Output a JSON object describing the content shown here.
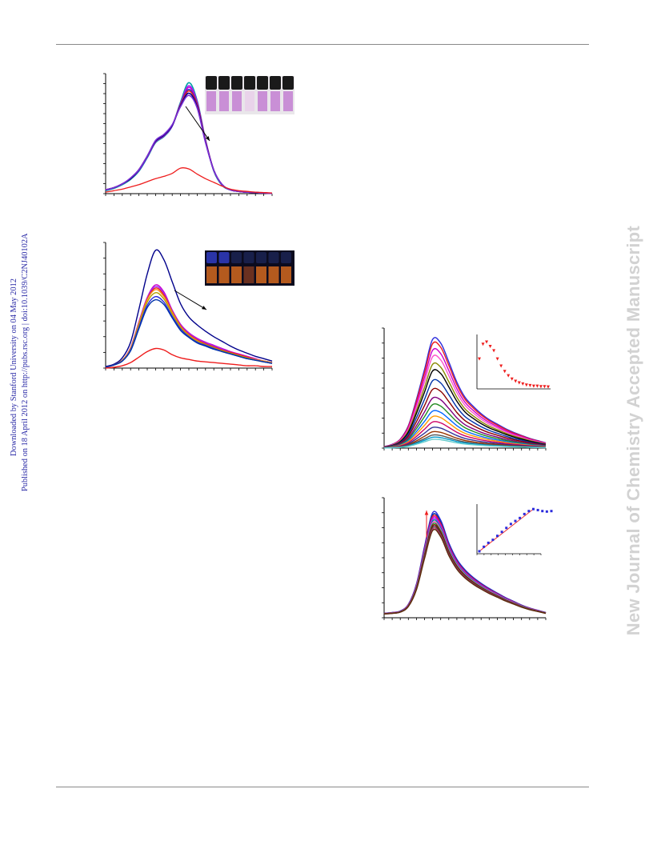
{
  "side_meta": {
    "line1": "Downloaded by Stanford University on 04 May 2012",
    "line2": "Published on 18 April 2012 on http://pubs.rsc.org | doi:10.1039/C2NJ40102A"
  },
  "watermark": "New Journal of Chemistry Accepted Manuscript",
  "colors": {
    "rule": "#8a8a8a",
    "side_meta": "#2a2aa6",
    "watermark": "#d2d2d2",
    "red": "#ee1c1c",
    "blue": "#2c2cdd",
    "navy": "#00008b"
  },
  "chart_data": [
    {
      "panel": "absorption",
      "type": "line",
      "x": [
        0,
        1,
        2,
        3,
        4,
        5,
        6,
        7,
        8,
        9,
        10,
        11,
        12,
        13,
        14,
        15,
        16,
        17,
        18,
        19,
        20
      ],
      "ylim": [
        0,
        1.6
      ],
      "series": [
        {
          "color": "#00a3a3",
          "values": [
            0.04,
            0.07,
            0.12,
            0.19,
            0.3,
            0.48,
            0.68,
            0.76,
            0.9,
            1.22,
            1.48,
            1.24,
            0.72,
            0.3,
            0.11,
            0.05,
            0.03,
            0.02,
            0.015,
            0.01,
            0.005
          ]
        },
        {
          "color": "#9b30ff",
          "values": [
            0.05,
            0.08,
            0.13,
            0.2,
            0.31,
            0.49,
            0.69,
            0.77,
            0.9,
            1.2,
            1.44,
            1.22,
            0.71,
            0.31,
            0.12,
            0.05,
            0.03,
            0.02,
            0.015,
            0.01,
            0.005
          ]
        },
        {
          "color": "#cc00cc",
          "values": [
            0.05,
            0.08,
            0.13,
            0.2,
            0.31,
            0.49,
            0.69,
            0.77,
            0.91,
            1.2,
            1.42,
            1.21,
            0.71,
            0.31,
            0.12,
            0.05,
            0.03,
            0.02,
            0.015,
            0.01,
            0.005
          ]
        },
        {
          "color": "#3333cc",
          "values": [
            0.05,
            0.08,
            0.13,
            0.2,
            0.31,
            0.49,
            0.7,
            0.78,
            0.91,
            1.19,
            1.39,
            1.19,
            0.7,
            0.31,
            0.12,
            0.05,
            0.03,
            0.02,
            0.015,
            0.01,
            0.005
          ]
        },
        {
          "color": "#ee1c1c",
          "values": [
            0.05,
            0.08,
            0.13,
            0.2,
            0.32,
            0.5,
            0.7,
            0.78,
            0.91,
            1.18,
            1.37,
            1.18,
            0.7,
            0.31,
            0.12,
            0.05,
            0.03,
            0.02,
            0.015,
            0.01,
            0.005
          ]
        },
        {
          "color": "#00008b",
          "values": [
            0.05,
            0.08,
            0.13,
            0.2,
            0.32,
            0.5,
            0.7,
            0.78,
            0.91,
            1.17,
            1.34,
            1.16,
            0.69,
            0.31,
            0.12,
            0.05,
            0.03,
            0.02,
            0.015,
            0.01,
            0.005
          ]
        },
        {
          "color": "#7a2fd6",
          "values": [
            0.05,
            0.08,
            0.13,
            0.21,
            0.32,
            0.5,
            0.71,
            0.79,
            0.92,
            1.16,
            1.31,
            1.14,
            0.68,
            0.31,
            0.12,
            0.05,
            0.03,
            0.02,
            0.015,
            0.01,
            0.005
          ]
        },
        {
          "color": "#ee1c1c",
          "values": [
            0.02,
            0.04,
            0.06,
            0.09,
            0.12,
            0.16,
            0.2,
            0.23,
            0.27,
            0.34,
            0.33,
            0.26,
            0.2,
            0.15,
            0.1,
            0.06,
            0.04,
            0.03,
            0.02,
            0.015,
            0.01
          ]
        }
      ]
    },
    {
      "panel": "emission",
      "type": "line",
      "x": [
        0,
        1,
        2,
        3,
        4,
        5,
        6,
        7,
        8,
        9,
        10,
        11,
        12,
        13,
        14,
        15,
        16,
        17,
        18,
        19,
        20
      ],
      "ylim": [
        0,
        1.6
      ],
      "series": [
        {
          "color": "#00008b",
          "values": [
            0.02,
            0.05,
            0.13,
            0.33,
            0.75,
            1.2,
            1.5,
            1.38,
            1.1,
            0.82,
            0.65,
            0.55,
            0.47,
            0.4,
            0.34,
            0.28,
            0.23,
            0.19,
            0.15,
            0.12,
            0.09
          ]
        },
        {
          "color": "#cc00cc",
          "values": [
            0.01,
            0.04,
            0.1,
            0.26,
            0.59,
            0.9,
            1.06,
            0.97,
            0.74,
            0.56,
            0.45,
            0.38,
            0.33,
            0.29,
            0.25,
            0.21,
            0.18,
            0.15,
            0.12,
            0.09,
            0.07
          ]
        },
        {
          "color": "#9b30ff",
          "values": [
            0.01,
            0.04,
            0.1,
            0.25,
            0.58,
            0.89,
            1.04,
            0.95,
            0.73,
            0.55,
            0.44,
            0.37,
            0.32,
            0.28,
            0.24,
            0.2,
            0.17,
            0.14,
            0.11,
            0.09,
            0.07
          ]
        },
        {
          "color": "#ee1c1c",
          "values": [
            0.01,
            0.04,
            0.1,
            0.25,
            0.57,
            0.88,
            1.02,
            0.93,
            0.72,
            0.54,
            0.43,
            0.36,
            0.31,
            0.27,
            0.23,
            0.2,
            0.17,
            0.14,
            0.11,
            0.09,
            0.07
          ]
        },
        {
          "color": "#f7931e",
          "values": [
            0.01,
            0.04,
            0.1,
            0.25,
            0.57,
            0.87,
            1.0,
            0.91,
            0.71,
            0.53,
            0.42,
            0.35,
            0.3,
            0.26,
            0.22,
            0.19,
            0.16,
            0.13,
            0.11,
            0.09,
            0.07
          ]
        },
        {
          "color": "#b5a000",
          "values": [
            0.01,
            0.04,
            0.09,
            0.24,
            0.55,
            0.84,
            0.96,
            0.88,
            0.69,
            0.52,
            0.41,
            0.34,
            0.3,
            0.26,
            0.22,
            0.19,
            0.16,
            0.13,
            0.1,
            0.08,
            0.06
          ]
        },
        {
          "color": "#2c2cdd",
          "values": [
            0.01,
            0.04,
            0.09,
            0.23,
            0.52,
            0.8,
            0.91,
            0.84,
            0.66,
            0.5,
            0.4,
            0.33,
            0.29,
            0.25,
            0.21,
            0.18,
            0.15,
            0.12,
            0.1,
            0.08,
            0.06
          ]
        },
        {
          "color": "#0033aa",
          "values": [
            0.01,
            0.04,
            0.09,
            0.22,
            0.5,
            0.77,
            0.87,
            0.81,
            0.64,
            0.48,
            0.39,
            0.32,
            0.28,
            0.24,
            0.21,
            0.18,
            0.15,
            0.12,
            0.1,
            0.08,
            0.06
          ]
        },
        {
          "color": "#ee1c1c",
          "values": [
            0.0,
            0.01,
            0.03,
            0.07,
            0.14,
            0.21,
            0.25,
            0.23,
            0.17,
            0.13,
            0.11,
            0.09,
            0.08,
            0.07,
            0.06,
            0.05,
            0.04,
            0.03,
            0.03,
            0.02,
            0.02
          ]
        }
      ]
    },
    {
      "panel": "titration-quench",
      "type": "line",
      "x": [
        0,
        1,
        2,
        3,
        4,
        5,
        6,
        7,
        8,
        9,
        10,
        11,
        12,
        13,
        14,
        15,
        16,
        17,
        18,
        19,
        20
      ],
      "ylim": [
        0,
        1.6
      ],
      "scale": [
        1.0,
        0.96,
        0.9,
        0.84,
        0.77,
        0.71,
        0.62,
        0.54,
        0.46,
        0.4,
        0.34,
        0.29,
        0.24,
        0.19,
        0.15,
        0.12,
        0.1,
        0.08
      ],
      "series_colors": [
        "#2c2cdd",
        "#ee1c1c",
        "#cc00cc",
        "#ff55cc",
        "#888800",
        "#000000",
        "#0033aa",
        "#8b0000",
        "#800080",
        "#228b22",
        "#0066ff",
        "#ff9900",
        "#cc0066",
        "#333399",
        "#993300",
        "#555555",
        "#0099cc",
        "#66cccc"
      ],
      "base": [
        0.02,
        0.05,
        0.12,
        0.3,
        0.65,
        1.05,
        1.45,
        1.4,
        1.15,
        0.88,
        0.68,
        0.56,
        0.46,
        0.38,
        0.32,
        0.26,
        0.21,
        0.17,
        0.13,
        0.1,
        0.07
      ]
    },
    {
      "panel": "titration-enhance",
      "type": "line",
      "x": [
        0,
        1,
        2,
        3,
        4,
        5,
        6,
        7,
        8,
        9,
        10,
        11,
        12,
        13,
        14,
        15,
        16,
        17,
        18,
        19,
        20
      ],
      "ylim": [
        0,
        1.6
      ],
      "scale": [
        1.0,
        0.98,
        0.965,
        0.95,
        0.935,
        0.92,
        0.905,
        0.89,
        0.875,
        0.86,
        0.845,
        0.83
      ],
      "series_colors": [
        "#2c2cdd",
        "#0033aa",
        "#ee1c1c",
        "#cc00cc",
        "#9b30ff",
        "#008b8b",
        "#ff55cc",
        "#228b22",
        "#8b0000",
        "#444444",
        "#b03060",
        "#5a2d0c"
      ],
      "base": [
        0.06,
        0.07,
        0.09,
        0.18,
        0.45,
        0.95,
        1.4,
        1.3,
        1.0,
        0.78,
        0.64,
        0.54,
        0.46,
        0.39,
        0.33,
        0.27,
        0.22,
        0.17,
        0.13,
        0.1,
        0.07
      ]
    }
  ],
  "insets": {
    "quench": {
      "color": "#ee1c1c",
      "y": [
        0.55,
        0.82,
        0.86,
        0.78,
        0.7,
        0.55,
        0.42,
        0.32,
        0.24,
        0.18,
        0.14,
        0.11,
        0.09,
        0.07,
        0.06,
        0.05,
        0.05,
        0.04,
        0.04,
        0.035
      ]
    },
    "enhance": {
      "point_colors": [
        "#ee1c1c",
        "#2c2cdd"
      ],
      "y": [
        0.05,
        0.14,
        0.22,
        0.28,
        0.36,
        0.44,
        0.52,
        0.6,
        0.66,
        0.72,
        0.8,
        0.86,
        0.9,
        0.88,
        0.86,
        0.85,
        0.86
      ]
    }
  }
}
